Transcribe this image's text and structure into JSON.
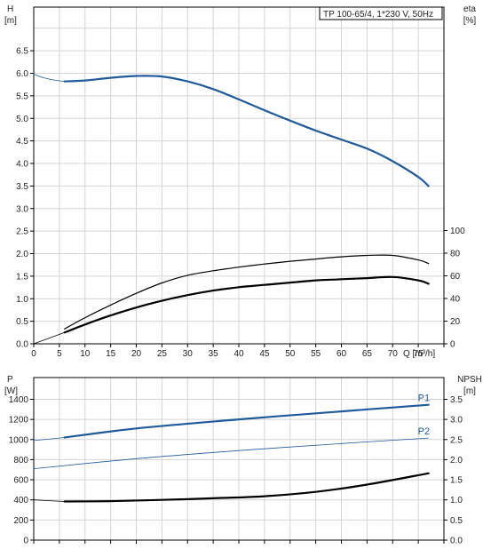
{
  "chart_data": [
    {
      "type": "line",
      "title": "TP 100-65/4, 1*230 V, 50Hz",
      "xlabel": "Q [m³/h]",
      "x_ticks": [
        "0",
        "5",
        "10",
        "15",
        "20",
        "25",
        "30",
        "35",
        "40",
        "45",
        "50",
        "55",
        "60",
        "65",
        "70",
        "75"
      ],
      "xlim": [
        0,
        80
      ],
      "grid": true,
      "left_axis": {
        "label_line1": "H",
        "label_line2": "[m]",
        "ticks": [
          "0.0",
          "0.5",
          "1.0",
          "1.5",
          "2.0",
          "2.5",
          "3.0",
          "3.5",
          "4.0",
          "4.5",
          "5.0",
          "5.5",
          "6.0",
          "6.5"
        ],
        "ylim": [
          0,
          7.5
        ]
      },
      "right_axis": {
        "label_line1": "eta",
        "label_line2": "[%]",
        "ticks": [
          "0",
          "20",
          "40",
          "60",
          "80",
          "100"
        ],
        "ylim": [
          0,
          100
        ]
      },
      "series": [
        {
          "color": "#1f5a9a",
          "width": 2.2,
          "axis": "left",
          "x": [
            6,
            10,
            15,
            20,
            25,
            30,
            35,
            40,
            45,
            50,
            55,
            60,
            65,
            70,
            75,
            77
          ],
          "y": [
            5.82,
            5.84,
            5.9,
            5.94,
            5.93,
            5.82,
            5.65,
            5.42,
            5.18,
            4.95,
            4.73,
            4.53,
            4.33,
            4.05,
            3.7,
            3.5
          ]
        },
        {
          "color": "#1f5a9a",
          "width": 0.8,
          "axis": "left",
          "x": [
            0,
            2,
            4,
            6
          ],
          "y": [
            5.98,
            5.9,
            5.85,
            5.82
          ]
        },
        {
          "color": "#000000",
          "width": 1.2,
          "axis": "left",
          "x": [
            6,
            10,
            15,
            20,
            25,
            30,
            35,
            40,
            45,
            50,
            55,
            60,
            65,
            70,
            75,
            77
          ],
          "y": [
            0.33,
            0.58,
            0.86,
            1.12,
            1.35,
            1.52,
            1.62,
            1.7,
            1.77,
            1.83,
            1.88,
            1.93,
            1.96,
            1.96,
            1.86,
            1.78
          ]
        },
        {
          "color": "#000000",
          "width": 2.2,
          "axis": "right",
          "x": [
            6,
            10,
            15,
            20,
            25,
            30,
            35,
            40,
            45,
            50,
            55,
            60,
            65,
            70,
            75,
            77
          ],
          "y": [
            10,
            17,
            25,
            32,
            38,
            43,
            47,
            50,
            52,
            54,
            56,
            57,
            58,
            59,
            56,
            53
          ]
        },
        {
          "color": "#000000",
          "width": 0.8,
          "axis": "right",
          "x": [
            0,
            6
          ],
          "y": [
            0,
            10
          ]
        }
      ]
    },
    {
      "type": "line",
      "xlim": [
        0,
        80
      ],
      "grid": true,
      "left_axis": {
        "label_line1": "P",
        "label_line2": "[W]",
        "ticks": [
          "0",
          "200",
          "400",
          "600",
          "800",
          "1000",
          "1200",
          "1400"
        ],
        "ylim": [
          0,
          1400
        ]
      },
      "right_axis": {
        "label_line1": "NPSH",
        "label_line2": "[m]",
        "ticks": [
          "0.0",
          "0.5",
          "1.0",
          "1.5",
          "2.0",
          "2.5",
          "3.0",
          "3.5"
        ],
        "ylim": [
          0,
          3.5
        ]
      },
      "series": [
        {
          "name": "P1",
          "color": "#1f5a9a",
          "width": 2.2,
          "axis": "left",
          "x": [
            6,
            20,
            40,
            60,
            77
          ],
          "y": [
            1020,
            1110,
            1200,
            1280,
            1345
          ]
        },
        {
          "color": "#1f5a9a",
          "width": 0.8,
          "axis": "left",
          "x": [
            0,
            6
          ],
          "y": [
            990,
            1020
          ]
        },
        {
          "name": "P2",
          "color": "#1f5a9a",
          "width": 0.8,
          "axis": "left",
          "x": [
            0,
            20,
            40,
            60,
            77
          ],
          "y": [
            710,
            810,
            890,
            960,
            1015
          ]
        },
        {
          "color": "#000000",
          "width": 2.2,
          "axis": "right",
          "x": [
            6,
            15,
            25,
            35,
            45,
            55,
            65,
            77
          ],
          "y": [
            0.96,
            0.97,
            1.0,
            1.04,
            1.09,
            1.2,
            1.38,
            1.66
          ]
        },
        {
          "color": "#000000",
          "width": 0.8,
          "axis": "right",
          "x": [
            0,
            6
          ],
          "y": [
            1.0,
            0.96
          ]
        }
      ]
    }
  ]
}
